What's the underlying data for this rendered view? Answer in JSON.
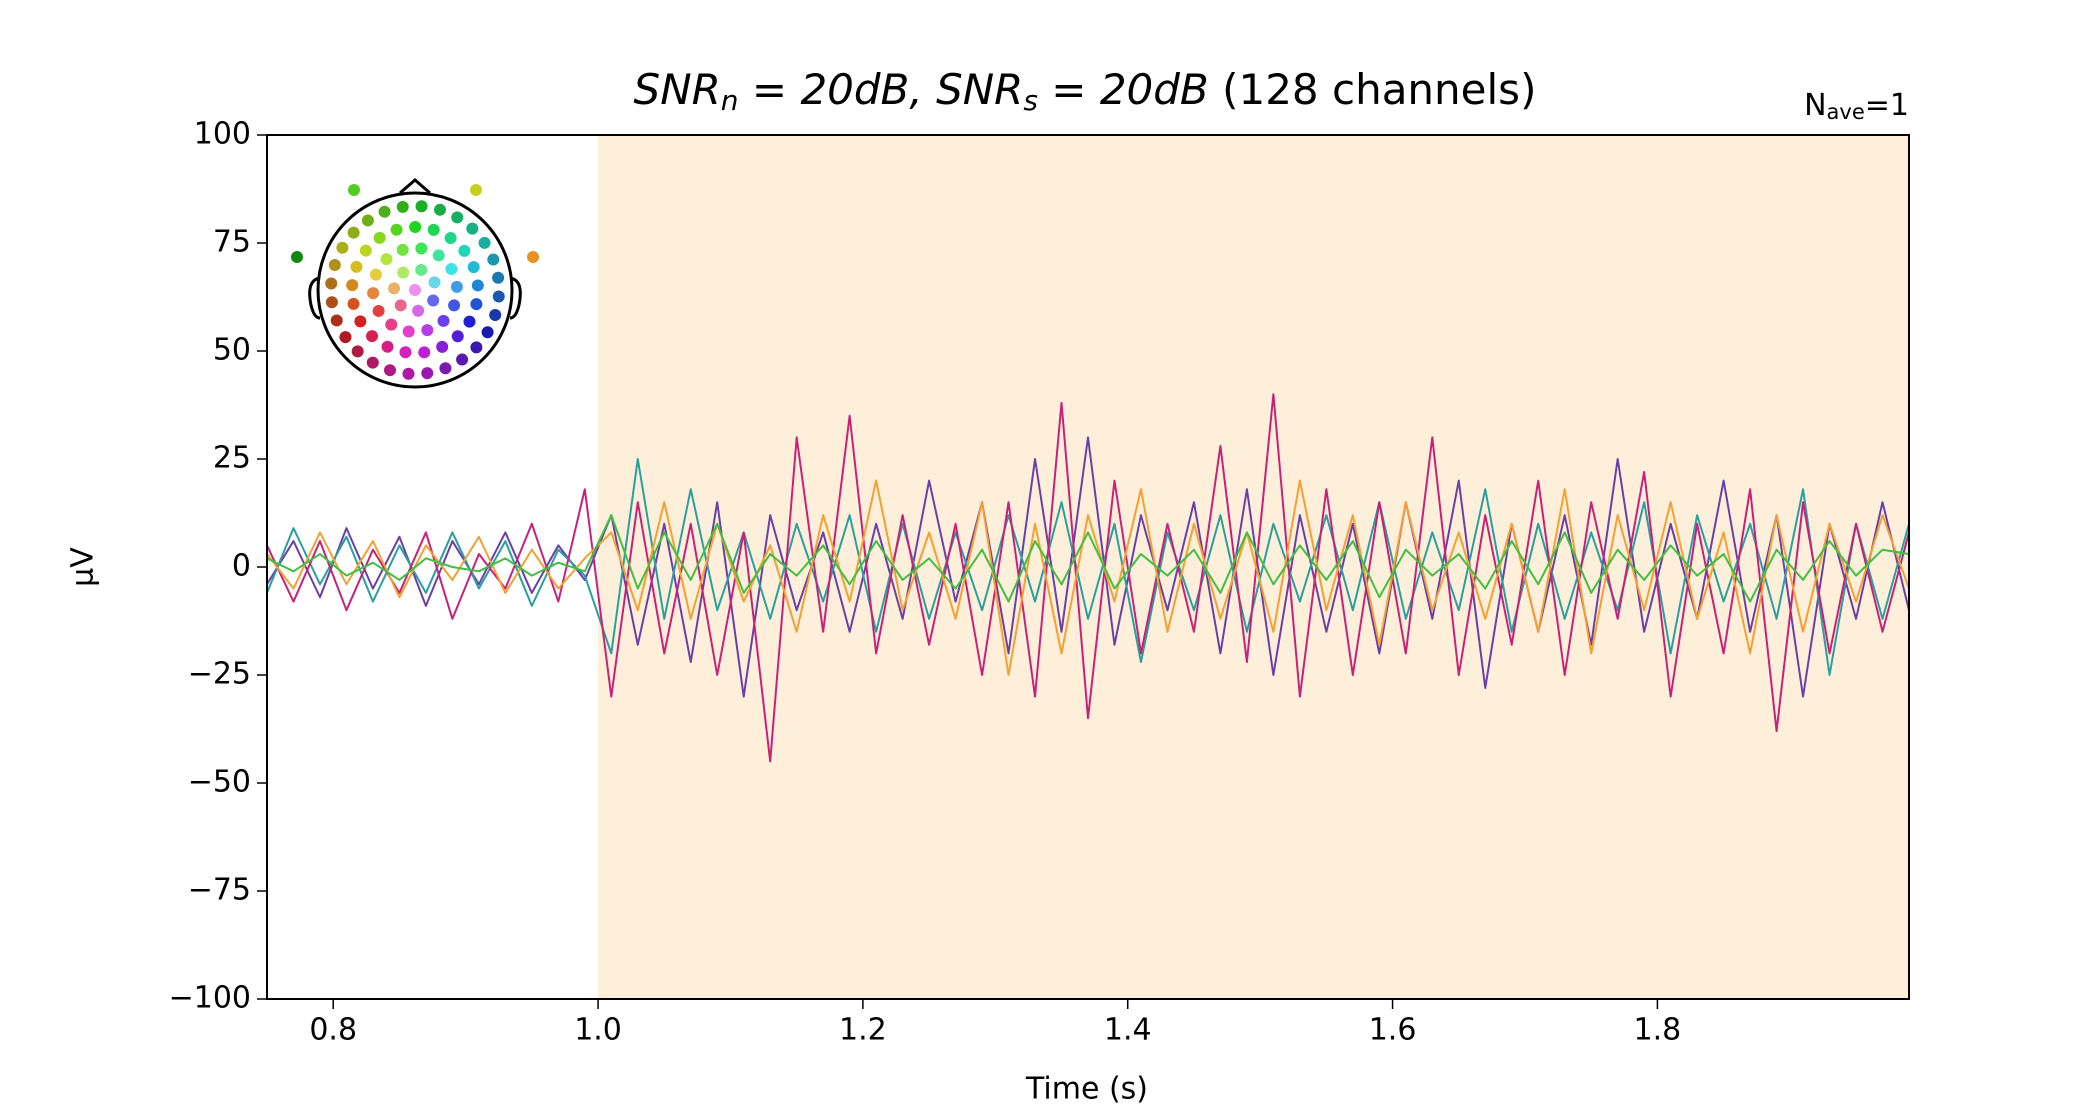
{
  "chart_data": {
    "type": "line",
    "title_math": [
      "SNR",
      "n",
      " = 20dB, ",
      "SNR",
      "s",
      " = 20dB"
    ],
    "title_suffix": " (128 channels)",
    "annotation": [
      "N",
      "ave",
      "=1"
    ],
    "x_label": "Time (s)",
    "y_label": "µV",
    "xlim": [
      0.75,
      1.99
    ],
    "ylim": [
      -100,
      100
    ],
    "xticks": [
      0.8,
      1.0,
      1.2,
      1.4,
      1.6,
      1.8
    ],
    "yticks": [
      {
        "value": -100,
        "label": "−100"
      },
      {
        "value": -75,
        "label": "−75"
      },
      {
        "value": -50,
        "label": "−50"
      },
      {
        "value": -25,
        "label": "−25"
      },
      0,
      25,
      50,
      75,
      100
    ],
    "highlight": {
      "span": [
        1.0,
        1.99
      ],
      "color": "#fdefd9"
    },
    "x": [
      0.75,
      0.77,
      0.79,
      0.81,
      0.83,
      0.85,
      0.87,
      0.89,
      0.91,
      0.93,
      0.95,
      0.97,
      0.99,
      1.01,
      1.03,
      1.05,
      1.07,
      1.09,
      1.11,
      1.13,
      1.15,
      1.17,
      1.19,
      1.21,
      1.23,
      1.25,
      1.27,
      1.29,
      1.31,
      1.33,
      1.35,
      1.37,
      1.39,
      1.41,
      1.43,
      1.45,
      1.47,
      1.49,
      1.51,
      1.53,
      1.55,
      1.57,
      1.59,
      1.61,
      1.63,
      1.65,
      1.67,
      1.69,
      1.71,
      1.73,
      1.75,
      1.77,
      1.79,
      1.81,
      1.83,
      1.85,
      1.87,
      1.89,
      1.91,
      1.93,
      1.95,
      1.97,
      1.99
    ],
    "series": [
      {
        "color": "#6a3fa8",
        "values": [
          -4,
          6,
          -7,
          9,
          -5,
          7,
          -9,
          6,
          -4,
          8,
          -6,
          5,
          -3,
          12,
          -18,
          10,
          -22,
          15,
          -30,
          12,
          -10,
          8,
          -15,
          10,
          -12,
          20,
          -8,
          15,
          -20,
          25,
          -15,
          30,
          -18,
          12,
          -10,
          15,
          -20,
          18,
          -25,
          12,
          -15,
          10,
          -20,
          15,
          -12,
          20,
          -28,
          10,
          -15,
          12,
          -18,
          25,
          -15,
          10,
          -12,
          20,
          -15,
          12,
          -30,
          10,
          -12,
          15,
          -10
        ]
      },
      {
        "color": "#2a9fa0",
        "values": [
          -6,
          9,
          -4,
          7,
          -8,
          5,
          -6,
          8,
          -5,
          6,
          -9,
          4,
          -2,
          -20,
          25,
          -12,
          18,
          -10,
          8,
          -12,
          10,
          -8,
          12,
          -15,
          10,
          -12,
          8,
          -10,
          12,
          -8,
          15,
          -12,
          10,
          -22,
          8,
          -10,
          12,
          -15,
          10,
          -8,
          12,
          -10,
          15,
          -12,
          8,
          -10,
          18,
          -15,
          10,
          -12,
          8,
          -10,
          15,
          -20,
          12,
          -8,
          10,
          -12,
          18,
          -25,
          10,
          -12,
          10
        ]
      },
      {
        "color": "#c8217a",
        "values": [
          5,
          -8,
          6,
          -10,
          4,
          -6,
          8,
          -12,
          3,
          -5,
          10,
          -8,
          18,
          -30,
          15,
          -20,
          10,
          -25,
          8,
          -45,
          30,
          -15,
          35,
          -20,
          12,
          -18,
          10,
          -25,
          15,
          -30,
          38,
          -35,
          20,
          -20,
          10,
          -15,
          28,
          -22,
          40,
          -30,
          18,
          -25,
          15,
          -20,
          30,
          -25,
          12,
          -18,
          20,
          -25,
          15,
          -12,
          22,
          -30,
          10,
          -20,
          18,
          -38,
          15,
          -20,
          10,
          -15,
          8
        ]
      },
      {
        "color": "#f5a030",
        "values": [
          3,
          -5,
          8,
          -4,
          6,
          -7,
          5,
          -3,
          7,
          -6,
          4,
          -5,
          2,
          8,
          -10,
          15,
          -12,
          10,
          -8,
          5,
          -15,
          12,
          -8,
          20,
          -10,
          8,
          -12,
          15,
          -25,
          10,
          -20,
          12,
          -8,
          18,
          -15,
          10,
          -12,
          8,
          -15,
          20,
          -10,
          12,
          -18,
          15,
          -10,
          8,
          -12,
          10,
          -15,
          18,
          -20,
          12,
          -10,
          15,
          -12,
          8,
          -20,
          12,
          -15,
          10,
          -8,
          12,
          -5
        ]
      },
      {
        "color": "#40c040",
        "values": [
          2,
          -1,
          3,
          -2,
          1,
          -3,
          2,
          0,
          -1,
          2,
          -2,
          1,
          -1,
          12,
          -5,
          8,
          -3,
          10,
          -6,
          3,
          -2,
          5,
          -4,
          6,
          -3,
          2,
          -5,
          4,
          -8,
          6,
          -4,
          8,
          -5,
          3,
          -2,
          4,
          -6,
          8,
          -4,
          5,
          -3,
          6,
          -7,
          4,
          -2,
          3,
          -5,
          6,
          -4,
          8,
          -6,
          4,
          -3,
          5,
          -2,
          3,
          -8,
          4,
          -3,
          6,
          -2,
          4,
          3
        ]
      }
    ]
  }
}
